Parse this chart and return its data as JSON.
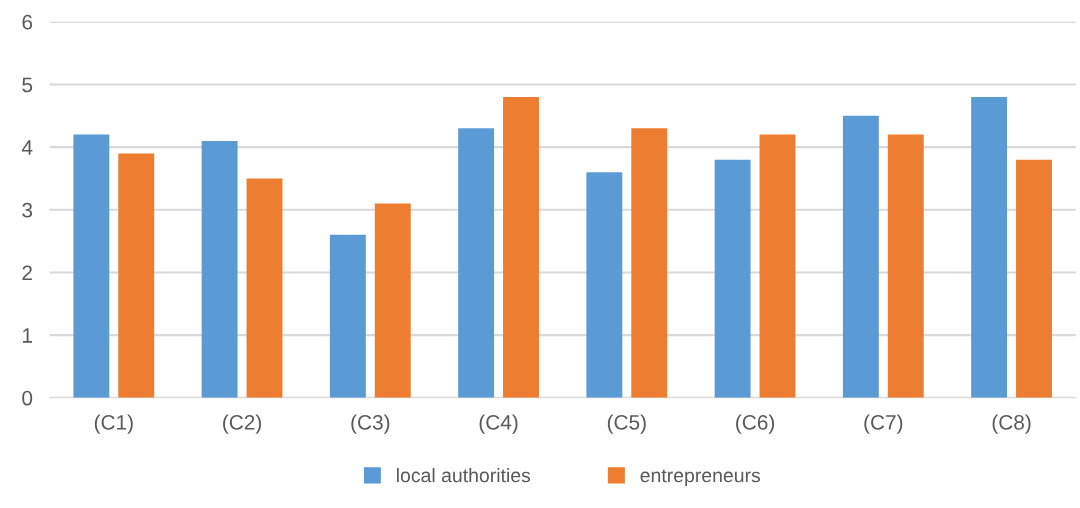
{
  "chart_data": {
    "type": "bar",
    "categories": [
      "(C1)",
      "(C2)",
      "(C3)",
      "(C4)",
      "(C5)",
      "(C6)",
      "(C7)",
      "(C8)"
    ],
    "series": [
      {
        "name": "local authorities",
        "color": "#5b9bd5",
        "values": [
          4.2,
          4.1,
          2.6,
          4.3,
          3.6,
          3.8,
          4.5,
          4.8
        ]
      },
      {
        "name": "entrepreneurs",
        "color": "#ed7d31",
        "values": [
          3.9,
          3.5,
          3.1,
          4.8,
          4.3,
          4.2,
          4.2,
          3.8
        ]
      }
    ],
    "ylim": [
      0,
      6
    ],
    "yticks": [
      0,
      1,
      2,
      3,
      4,
      5,
      6
    ],
    "grid": "y",
    "legend": "bottom"
  }
}
